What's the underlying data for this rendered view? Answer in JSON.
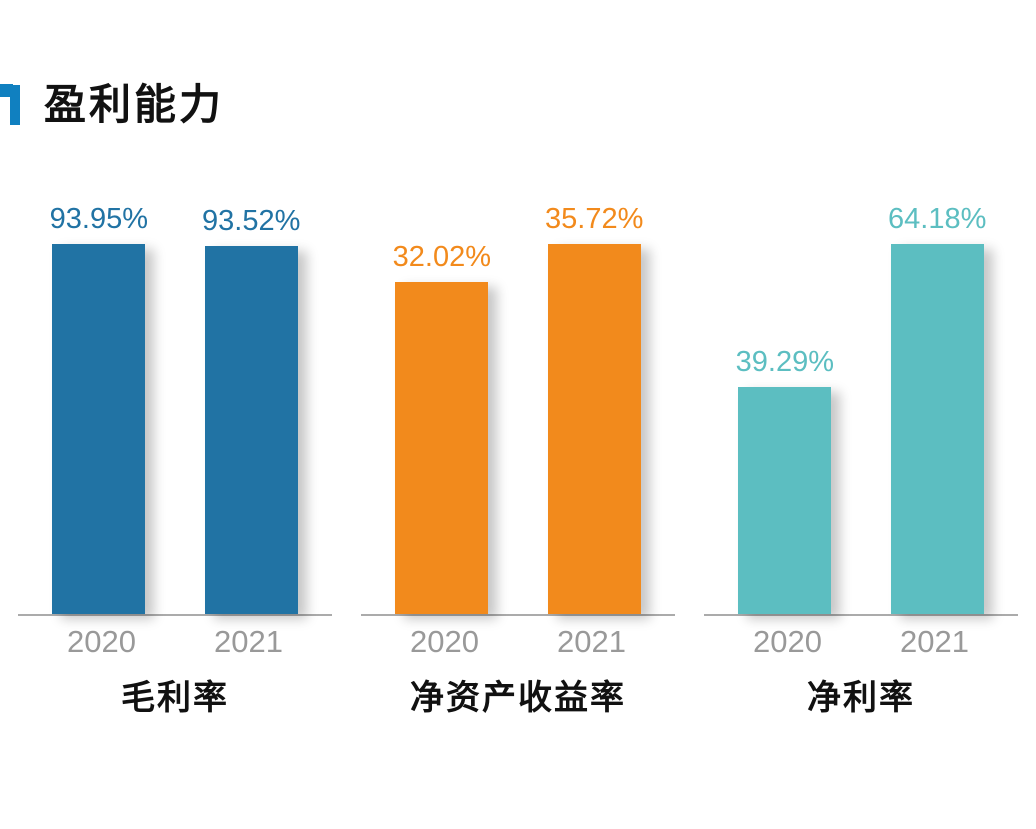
{
  "page": {
    "title": "盈利能力",
    "accent_color": "#1080c0"
  },
  "chart_data": {
    "type": "bar",
    "title": "盈利能力",
    "categories": [
      "2020",
      "2021"
    ],
    "value_unit": "%",
    "grid": false,
    "legend": false,
    "groups": [
      {
        "name": "毛利率",
        "color": "#2173a4",
        "values": [
          93.95,
          93.52
        ],
        "labels": [
          "93.95%",
          "93.52%"
        ]
      },
      {
        "name": "净资产收益率",
        "color": "#f28a1c",
        "values": [
          32.02,
          35.72
        ],
        "labels": [
          "32.02%",
          "35.72%"
        ]
      },
      {
        "name": "净利率",
        "color": "#5cbec1",
        "values": [
          39.29,
          64.18
        ],
        "labels": [
          "39.29%",
          "64.18%"
        ]
      }
    ]
  }
}
